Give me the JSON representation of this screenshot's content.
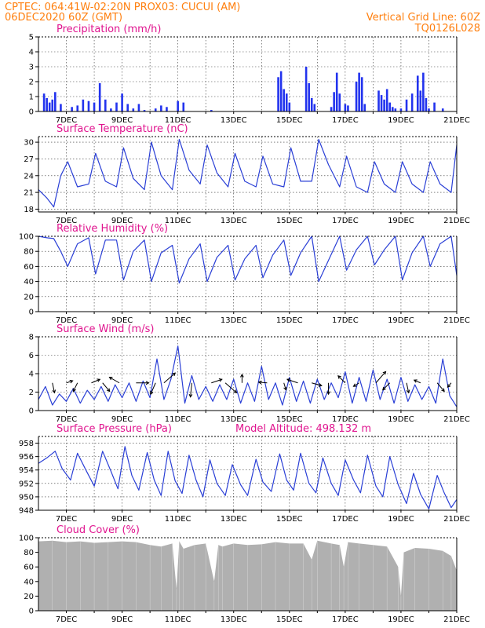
{
  "header": {
    "line1_left": "CPTEC:   064:41W-02:20N   PROX03: CUCUI (AM)",
    "line2_left": "06DEC2020 60Z (GMT)",
    "line1_right": "Vertical Grid Line: 60Z",
    "line2_right": "TQ0126L028"
  },
  "colors": {
    "header": "#ff7f0e",
    "titles": "#e0158f",
    "line": "#2a3fd6",
    "bars": "#2233ee",
    "cloud": "#b0b0b0",
    "arrows": "#000000"
  },
  "chart_data": [
    {
      "type": "bar",
      "title": "Precipitation (mm/h)",
      "x_tick_labels": [
        "7DEC",
        "9DEC",
        "11DEC",
        "13DEC",
        "15DEC",
        "17DEC",
        "19DEC",
        "21DEC"
      ],
      "ylim": [
        0,
        5
      ],
      "y_ticks": [
        0,
        1,
        2,
        3,
        4,
        5
      ],
      "grid": true,
      "x_day_range": [
        6.0,
        21.0
      ],
      "x": [
        6.2,
        6.3,
        6.4,
        6.5,
        6.6,
        6.8,
        7.2,
        7.4,
        7.6,
        7.8,
        8.0,
        8.2,
        8.4,
        8.6,
        8.8,
        9.0,
        9.2,
        9.4,
        9.6,
        9.8,
        10.2,
        10.4,
        10.6,
        11.0,
        11.2,
        12.2,
        14.6,
        14.7,
        14.8,
        14.9,
        15.0,
        15.6,
        15.7,
        15.8,
        15.9,
        16.5,
        16.6,
        16.7,
        16.8,
        17.0,
        17.1,
        17.4,
        17.5,
        17.6,
        17.7,
        18.2,
        18.3,
        18.4,
        18.5,
        18.6,
        18.7,
        18.8,
        19.0,
        19.2,
        19.4,
        19.6,
        19.7,
        19.8,
        19.9,
        20.0,
        20.2,
        20.5
      ],
      "values": [
        1.2,
        0.9,
        0.6,
        0.8,
        1.3,
        0.5,
        0.3,
        0.4,
        0.8,
        0.7,
        0.6,
        1.9,
        0.8,
        0.2,
        0.6,
        1.2,
        0.5,
        0.2,
        0.5,
        0.1,
        0.2,
        0.4,
        0.3,
        0.7,
        0.6,
        0.1,
        2.3,
        2.7,
        1.5,
        1.2,
        0.6,
        3.0,
        1.9,
        0.9,
        0.5,
        0.3,
        1.3,
        2.6,
        1.2,
        0.5,
        0.4,
        2.0,
        2.6,
        2.3,
        0.5,
        1.4,
        1.1,
        0.8,
        1.5,
        0.6,
        0.3,
        0.2,
        0.2,
        0.8,
        1.2,
        2.4,
        1.4,
        2.6,
        0.9,
        0.2,
        0.6,
        0.2
      ]
    },
    {
      "type": "line",
      "title": "Surface Temperature (nC)",
      "x_tick_labels": [
        "7DEC",
        "9DEC",
        "11DEC",
        "13DEC",
        "15DEC",
        "17DEC",
        "19DEC",
        "21DEC"
      ],
      "ylim": [
        17.5,
        31
      ],
      "y_ticks": [
        18,
        21,
        24,
        27,
        30
      ],
      "grid": true,
      "x_day_range": [
        6.0,
        21.0
      ],
      "x": [
        6.0,
        6.3,
        6.55,
        6.8,
        7.05,
        7.4,
        7.8,
        8.05,
        8.4,
        8.8,
        9.05,
        9.4,
        9.8,
        10.05,
        10.4,
        10.8,
        11.05,
        11.4,
        11.8,
        12.05,
        12.4,
        12.8,
        13.05,
        13.4,
        13.8,
        14.05,
        14.4,
        14.8,
        15.05,
        15.4,
        15.8,
        16.05,
        16.4,
        16.8,
        17.05,
        17.4,
        17.8,
        18.05,
        18.4,
        18.8,
        19.05,
        19.4,
        19.8,
        20.05,
        20.4,
        20.8,
        21.0
      ],
      "values": [
        21.5,
        20.0,
        18.4,
        24.0,
        26.5,
        22.0,
        22.5,
        28.0,
        23.0,
        22.0,
        29.0,
        23.5,
        21.5,
        30.0,
        24.0,
        21.5,
        30.5,
        25.0,
        22.5,
        29.5,
        24.5,
        22.0,
        28.0,
        23.0,
        22.0,
        27.5,
        22.5,
        22.0,
        29.0,
        23.0,
        23.0,
        30.5,
        26.0,
        22.0,
        27.5,
        22.0,
        21.0,
        26.5,
        22.5,
        21.0,
        26.5,
        22.5,
        21.0,
        26.5,
        22.5,
        21.0,
        29.5
      ]
    },
    {
      "type": "line",
      "title": "Relative Humidity (%)",
      "x_tick_labels": [
        "7DEC",
        "9DEC",
        "11DEC",
        "13DEC",
        "15DEC",
        "17DEC",
        "19DEC",
        "21DEC"
      ],
      "ylim": [
        0,
        100
      ],
      "y_ticks": [
        0,
        20,
        40,
        60,
        80,
        100
      ],
      "grid": true,
      "x_day_range": [
        6.0,
        21.0
      ],
      "x": [
        6.0,
        6.3,
        6.55,
        6.8,
        7.05,
        7.4,
        7.8,
        8.05,
        8.4,
        8.8,
        9.05,
        9.4,
        9.8,
        10.05,
        10.4,
        10.8,
        11.05,
        11.4,
        11.8,
        12.05,
        12.4,
        12.8,
        13.05,
        13.4,
        13.8,
        14.05,
        14.4,
        14.8,
        15.05,
        15.4,
        15.8,
        16.05,
        16.4,
        16.8,
        17.05,
        17.4,
        17.8,
        18.05,
        18.4,
        18.8,
        19.05,
        19.4,
        19.8,
        20.05,
        20.4,
        20.8,
        21.0
      ],
      "values": [
        100,
        98,
        97,
        80,
        60,
        90,
        98,
        50,
        95,
        95,
        42,
        80,
        95,
        40,
        78,
        88,
        38,
        70,
        90,
        40,
        72,
        88,
        42,
        70,
        88,
        45,
        75,
        95,
        48,
        78,
        100,
        40,
        68,
        100,
        55,
        82,
        100,
        62,
        82,
        100,
        42,
        78,
        100,
        60,
        90,
        100,
        48
      ]
    },
    {
      "type": "line",
      "title": "Surface Wind (m/s)",
      "x_tick_labels": [
        "7DEC",
        "9DEC",
        "11DEC",
        "13DEC",
        "15DEC",
        "17DEC",
        "19DEC",
        "21DEC"
      ],
      "ylim": [
        0,
        8
      ],
      "y_ticks": [
        0,
        2,
        4,
        6,
        8
      ],
      "grid": true,
      "x_day_range": [
        6.0,
        21.0
      ],
      "x": [
        6.0,
        6.25,
        6.5,
        6.75,
        7.0,
        7.25,
        7.5,
        7.75,
        8.0,
        8.25,
        8.5,
        8.75,
        9.0,
        9.25,
        9.5,
        9.75,
        10.0,
        10.25,
        10.5,
        10.75,
        11.0,
        11.25,
        11.5,
        11.75,
        12.0,
        12.25,
        12.5,
        12.75,
        13.0,
        13.25,
        13.5,
        13.75,
        14.0,
        14.25,
        14.5,
        14.75,
        15.0,
        15.25,
        15.5,
        15.75,
        16.0,
        16.25,
        16.5,
        16.75,
        17.0,
        17.25,
        17.5,
        17.75,
        18.0,
        18.25,
        18.5,
        18.75,
        19.0,
        19.25,
        19.5,
        19.75,
        20.0,
        20.25,
        20.5,
        20.75,
        21.0
      ],
      "values": [
        1.2,
        2.6,
        0.6,
        1.8,
        1.0,
        2.4,
        0.8,
        2.2,
        1.2,
        2.6,
        1.0,
        2.8,
        1.4,
        3.0,
        1.0,
        3.2,
        1.4,
        5.6,
        1.2,
        3.4,
        7.0,
        0.8,
        3.8,
        1.2,
        2.6,
        1.0,
        2.8,
        1.2,
        3.4,
        0.8,
        3.0,
        1.0,
        4.8,
        1.2,
        3.0,
        0.6,
        3.6,
        1.0,
        3.2,
        0.8,
        3.4,
        1.2,
        3.0,
        1.4,
        4.2,
        0.8,
        3.6,
        1.0,
        4.4,
        1.2,
        3.4,
        0.8,
        3.6,
        1.0,
        2.8,
        1.2,
        2.6,
        0.8,
        5.6,
        1.6,
        0.4
      ],
      "arrows": {
        "x": [
          6.5,
          7.0,
          7.4,
          7.9,
          8.3,
          8.9,
          9.5,
          10.2,
          10.5,
          11.5,
          12.2,
          12.7,
          13.3,
          14.2,
          14.8,
          15.3,
          15.8,
          16.4,
          17.0,
          17.5,
          18.1,
          18.6,
          19.2,
          19.7,
          20.3,
          20.8
        ],
        "u": [
          0.3,
          0.9,
          -0.6,
          1.2,
          1.0,
          -1.4,
          1.8,
          -0.7,
          1.6,
          -0.2,
          1.5,
          1.6,
          0.0,
          -1.2,
          0.3,
          -1.5,
          1.4,
          0.0,
          -1.0,
          -0.8,
          1.4,
          -1.0,
          0.3,
          -0.9,
          1.0,
          -0.5
        ],
        "v": [
          -1.4,
          0.3,
          -1.2,
          0.5,
          -1.2,
          0.8,
          0.0,
          -1.6,
          1.4,
          -2.0,
          0.5,
          -1.4,
          1.2,
          0.1,
          -1.0,
          0.5,
          -0.4,
          -1.6,
          1.0,
          -0.5,
          1.6,
          -1.0,
          -1.4,
          0.4,
          -1.2,
          -0.6
        ]
      }
    },
    {
      "type": "line",
      "title": "Surface Pressure (hPa)",
      "annotation": "Model Altitude: 498.132 m",
      "x_tick_labels": [
        "7DEC",
        "9DEC",
        "11DEC",
        "13DEC",
        "15DEC",
        "17DEC",
        "19DEC",
        "21DEC"
      ],
      "ylim": [
        948,
        959
      ],
      "y_ticks": [
        948,
        950,
        952,
        954,
        956,
        958
      ],
      "grid": true,
      "x_day_range": [
        6.0,
        21.0
      ],
      "x": [
        6.0,
        6.3,
        6.6,
        6.85,
        7.15,
        7.4,
        7.7,
        8.0,
        8.3,
        8.6,
        8.85,
        9.1,
        9.35,
        9.6,
        9.9,
        10.15,
        10.4,
        10.65,
        10.9,
        11.15,
        11.4,
        11.65,
        11.9,
        12.15,
        12.4,
        12.7,
        12.95,
        13.25,
        13.5,
        13.8,
        14.05,
        14.35,
        14.65,
        14.9,
        15.15,
        15.4,
        15.7,
        15.95,
        16.2,
        16.5,
        16.75,
        17.0,
        17.3,
        17.55,
        17.8,
        18.1,
        18.35,
        18.6,
        18.9,
        19.2,
        19.45,
        19.7,
        20.0,
        20.3,
        20.55,
        20.8,
        21.0
      ],
      "values": [
        955.0,
        955.8,
        956.8,
        954.2,
        952.5,
        956.5,
        954.0,
        951.6,
        956.8,
        953.8,
        951.2,
        957.5,
        953.2,
        951.0,
        956.6,
        952.5,
        950.2,
        956.8,
        952.4,
        950.5,
        956.2,
        952.5,
        950.0,
        955.5,
        952.0,
        950.2,
        954.8,
        951.8,
        950.2,
        955.6,
        952.2,
        950.8,
        956.4,
        952.5,
        951.0,
        956.5,
        952.0,
        950.6,
        955.8,
        952.0,
        950.2,
        955.5,
        952.5,
        950.6,
        956.2,
        951.6,
        950.0,
        956.0,
        951.8,
        949.0,
        953.5,
        950.4,
        948.2,
        953.2,
        950.6,
        948.4,
        949.6
      ]
    },
    {
      "type": "area",
      "title": "Cloud Cover (%)",
      "x_tick_labels": [
        "7DEC",
        "9DEC",
        "11DEC",
        "13DEC",
        "15DEC",
        "17DEC",
        "19DEC",
        "21DEC"
      ],
      "ylim": [
        0,
        100
      ],
      "y_ticks": [
        0,
        20,
        40,
        60,
        80,
        100
      ],
      "grid": false,
      "x_day_range": [
        6.0,
        21.0
      ],
      "x": [
        6.0,
        6.5,
        7.0,
        7.5,
        8.0,
        8.5,
        9.0,
        9.5,
        10.0,
        10.4,
        10.8,
        10.95,
        11.05,
        11.2,
        11.6,
        12.0,
        12.3,
        12.45,
        12.6,
        13.0,
        13.5,
        14.0,
        14.5,
        15.0,
        15.5,
        15.8,
        16.0,
        16.5,
        16.8,
        16.95,
        17.1,
        17.5,
        18.0,
        18.5,
        18.9,
        19.0,
        19.1,
        19.5,
        20.0,
        20.5,
        20.8,
        21.0
      ],
      "values": [
        95,
        96,
        94,
        95,
        93,
        94,
        95,
        94,
        90,
        88,
        92,
        30,
        95,
        85,
        90,
        92,
        40,
        90,
        88,
        92,
        90,
        91,
        94,
        92,
        92,
        70,
        96,
        92,
        90,
        60,
        94,
        92,
        90,
        88,
        60,
        20,
        80,
        86,
        85,
        82,
        75,
        55
      ]
    }
  ]
}
